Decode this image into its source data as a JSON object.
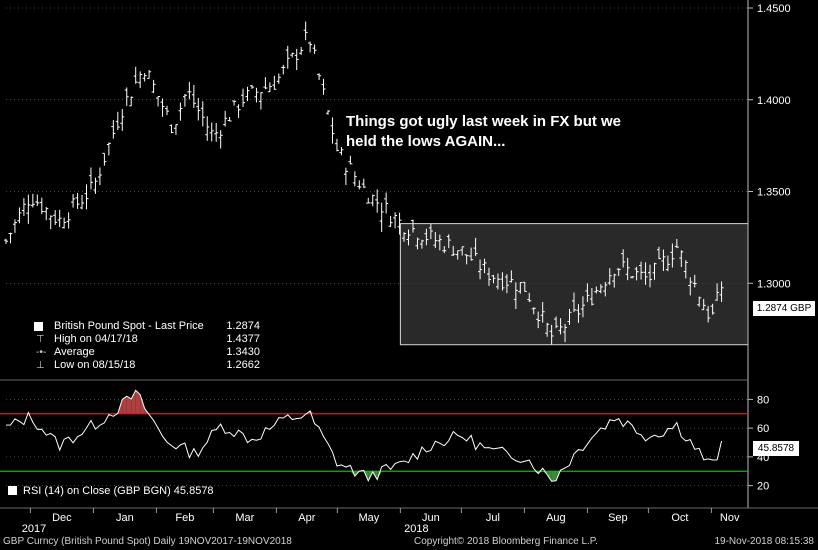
{
  "chart_data": [
    {
      "type": "ohlc",
      "title": "",
      "annotation": "Things got ugly last week in FX but we held the lows AGAIN...",
      "y_ticks": [
        "1.4500",
        "1.4000",
        "1.3500",
        "1.3000"
      ],
      "ylim": [
        1.25,
        1.45
      ],
      "last_price_label": "1.2874 GBP",
      "legend": {
        "title": "British Pound Spot - Last Price",
        "title_value": "1.2874",
        "rows": [
          {
            "label": "High on 04/17/18",
            "value": "1.4377"
          },
          {
            "label": "Average",
            "value": "1.3430"
          },
          {
            "label": "Low on 08/15/18",
            "value": "1.2662"
          }
        ]
      },
      "range_box": {
        "x_start": "2018-06-01",
        "x_end": "2018-11-19",
        "y_low": 1.2665,
        "y_high": 1.3325
      },
      "series": [
        {
          "name": "British Pound Spot",
          "x": [
            "2017-11-19",
            "2017-12-01",
            "2017-12-15",
            "2018-01-01",
            "2018-01-15",
            "2018-01-26",
            "2018-02-09",
            "2018-02-16",
            "2018-03-01",
            "2018-03-15",
            "2018-04-01",
            "2018-04-17",
            "2018-05-01",
            "2018-05-15",
            "2018-06-01",
            "2018-06-15",
            "2018-07-01",
            "2018-07-15",
            "2018-08-01",
            "2018-08-15",
            "2018-09-01",
            "2018-09-15",
            "2018-10-01",
            "2018-10-15",
            "2018-11-01",
            "2018-11-07",
            "2018-11-19"
          ],
          "y": [
            1.323,
            1.348,
            1.334,
            1.352,
            1.395,
            1.418,
            1.385,
            1.405,
            1.38,
            1.4,
            1.41,
            1.435,
            1.372,
            1.35,
            1.333,
            1.325,
            1.318,
            1.305,
            1.298,
            1.27,
            1.29,
            1.31,
            1.302,
            1.32,
            1.28,
            1.302,
            1.2874
          ]
        }
      ]
    },
    {
      "type": "line",
      "title": "",
      "legend_label": "RSI (14)  on Close (GBP BGN) 45.8578",
      "last_value_label": "45.8578",
      "y_ticks": [
        "80",
        "60",
        "40",
        "20"
      ],
      "ylim": [
        10,
        90
      ],
      "overbought": 70,
      "oversold": 30,
      "series": [
        {
          "name": "RSI (14)",
          "x": [
            "2017-11-19",
            "2017-12-01",
            "2017-12-15",
            "2018-01-01",
            "2018-01-15",
            "2018-01-22",
            "2018-02-05",
            "2018-02-20",
            "2018-03-05",
            "2018-03-20",
            "2018-04-05",
            "2018-04-17",
            "2018-05-01",
            "2018-05-15",
            "2018-06-01",
            "2018-06-15",
            "2018-07-01",
            "2018-07-15",
            "2018-08-01",
            "2018-08-15",
            "2018-09-01",
            "2018-09-15",
            "2018-10-01",
            "2018-10-15",
            "2018-11-01",
            "2018-11-10",
            "2018-11-19"
          ],
          "y": [
            60,
            68,
            48,
            62,
            76,
            84,
            52,
            42,
            62,
            52,
            66,
            70,
            36,
            26,
            34,
            48,
            55,
            44,
            40,
            24,
            52,
            68,
            54,
            62,
            33,
            58,
            45.86
          ]
        }
      ]
    }
  ],
  "x_axis": {
    "months": [
      "Dec",
      "Jan",
      "Feb",
      "Mar",
      "Apr",
      "May",
      "Jun",
      "Jul",
      "Aug",
      "Sep",
      "Oct",
      "Nov"
    ],
    "years": [
      "2017",
      "2018"
    ]
  },
  "footer": {
    "left": "GBP Curncy (British Pound Spot)  Daily 19NOV2017-19NOV2018",
    "center": "Copyright© 2018 Bloomberg Finance L.P.",
    "right": "19-Nov-2018 08:15:38"
  },
  "colors": {
    "background": "#000000",
    "bars": "#ffffff",
    "grid": "#8a8a8a",
    "overbought_line": "#cc2222",
    "oversold_line": "#22aa22",
    "overbought_fill": "#b04040",
    "oversold_fill": "#3a8a3a",
    "range_box_fill": "#3a3a3a"
  }
}
